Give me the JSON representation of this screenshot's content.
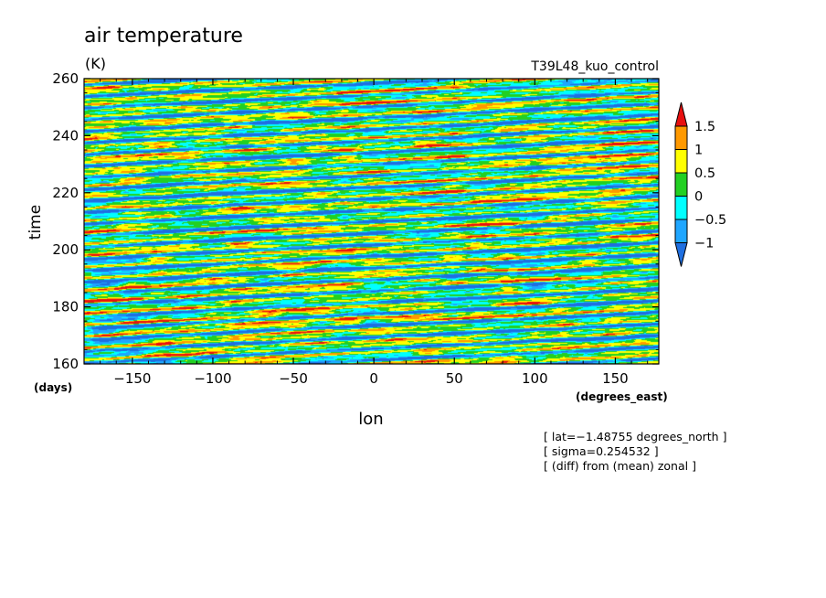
{
  "chart_data": {
    "type": "heatmap",
    "title": "air temperature",
    "units": "(K)",
    "run_label": "T39L48_kuo_control",
    "xlabel": "lon",
    "ylabel": "time",
    "x_units": "(degrees_east)",
    "y_units": "(days)",
    "xlim": [
      -180,
      177
    ],
    "ylim": [
      160,
      260
    ],
    "x_ticks": [
      -150,
      -100,
      -50,
      0,
      50,
      100,
      150
    ],
    "x_tick_labels": [
      "−150",
      "−100",
      "−50",
      "0",
      "50",
      "100",
      "150"
    ],
    "y_ticks": [
      160,
      180,
      200,
      220,
      240,
      260
    ],
    "y_tick_labels": [
      "160",
      "180",
      "200",
      "220",
      "240",
      "260"
    ],
    "colorbar": {
      "levels": [
        -1,
        -0.5,
        0,
        0.5,
        1,
        1.5
      ],
      "level_labels": [
        "−1",
        "−0.5",
        "0",
        "0.5",
        "1",
        "1.5"
      ],
      "colors": [
        "#1f6fe0",
        "#1fa6ff",
        "#00ffff",
        "#22d022",
        "#ffff00",
        "#ff9900",
        "#e81010"
      ],
      "extend": "both"
    },
    "annotations": [
      "[ lat=−1.48755 degrees_north ]",
      "[ sigma=0.254532 ]",
      "[ (diff) from (mean) zonal ]"
    ],
    "grid": false
  }
}
